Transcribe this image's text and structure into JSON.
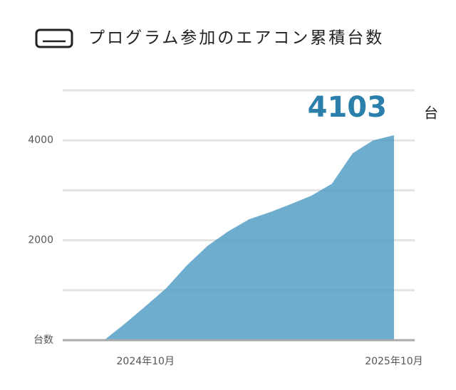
{
  "chart_data": {
    "type": "area",
    "title": "プログラム参加のエアコン累積台数",
    "ylabel": "台数",
    "x": [
      "2024-08",
      "2024-09",
      "2024-10",
      "2024-11",
      "2024-12",
      "2025-01",
      "2025-02",
      "2025-03",
      "2025-04",
      "2025-05",
      "2025-06",
      "2025-07",
      "2025-08",
      "2025-09",
      "2025-10"
    ],
    "series": [
      {
        "color": "#4a98c2",
        "values": [
          0,
          330,
          680,
          1040,
          1500,
          1890,
          2180,
          2420,
          2560,
          2720,
          2890,
          3130,
          3740,
          4000,
          4103
        ]
      }
    ],
    "ylim": [
      0,
      5000
    ],
    "yticks": [
      2000,
      4000
    ],
    "minor_grid": [
      1000,
      3000,
      5000
    ],
    "xlim": [
      "2024-06",
      "2025-11"
    ],
    "xticks": [
      {
        "value": "2024-10",
        "label": "2024年10月"
      },
      {
        "value": "2025-10",
        "label": "2025年10月"
      }
    ],
    "grid": true,
    "highlight_unit": "台",
    "highlight_color": "#2a7fab"
  }
}
